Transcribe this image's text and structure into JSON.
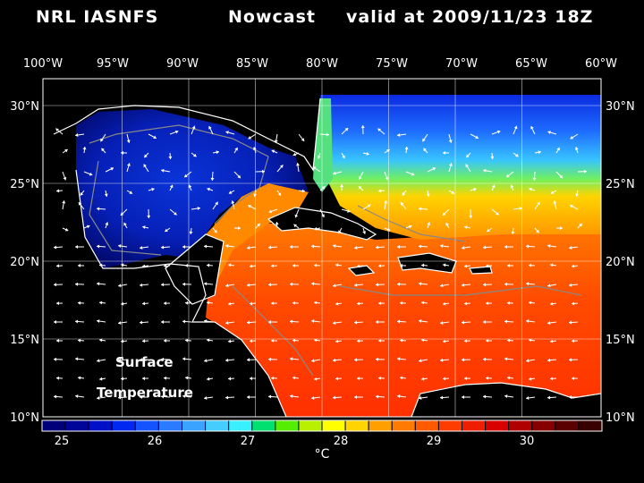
{
  "title": {
    "model": "NRL IASNFS",
    "run_type": "Nowcast",
    "valid": "valid at 2009/11/23 18Z"
  },
  "map": {
    "field_label_line1": "Surface",
    "field_label_line2": "Temperature",
    "lon_ticks": [
      "100°W",
      "95°W",
      "90°W",
      "85°W",
      "80°W",
      "75°W",
      "70°W",
      "65°W",
      "60°W"
    ],
    "lat_ticks_left": [
      "30°N",
      "25°N",
      "20°N",
      "15°N",
      "10°N"
    ],
    "lat_ticks_right": [
      "30°N",
      "25°N",
      "20°N",
      "15°N",
      "10°N"
    ]
  },
  "colorbar": {
    "unit": "°C",
    "tick_labels": [
      "25",
      "26",
      "27",
      "28",
      "29",
      "30"
    ],
    "colors": [
      "#00007a",
      "#00059a",
      "#0010c8",
      "#0028f0",
      "#1453ff",
      "#2a7bff",
      "#3aa3ff",
      "#45cdff",
      "#38f0ff",
      "#00e070",
      "#55ee00",
      "#b8f000",
      "#ffff00",
      "#ffd400",
      "#ffa000",
      "#ff7a00",
      "#ff5a00",
      "#ff3c00",
      "#f01e00",
      "#d80000",
      "#b00000",
      "#860000",
      "#5a0000",
      "#380000"
    ]
  }
}
